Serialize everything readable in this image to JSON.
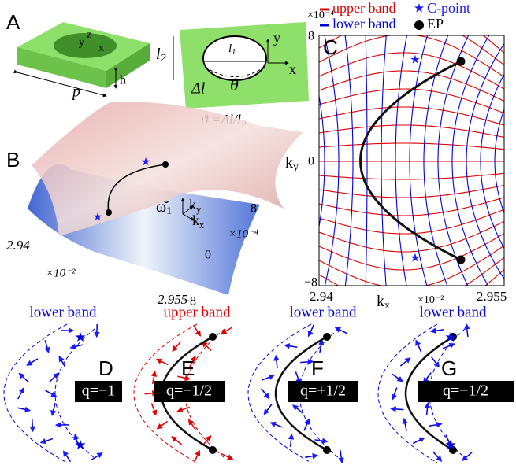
{
  "panel_a": {
    "label": "A",
    "axis_y": "y",
    "axis_z": "z",
    "axis_x": "x",
    "width": "p",
    "height": "h",
    "l2": {
      "base": "l",
      "sub": "2"
    },
    "l1": {
      "base": "l",
      "sub": "1"
    },
    "delta_l": "Δl",
    "theta": "θ",
    "inset_y": "y",
    "inset_x": "x",
    "formula": {
      "main": "ϑ =Δl/l",
      "sub": "2"
    }
  },
  "panel_b": {
    "label": "B",
    "omega": {
      "base": "ω̆",
      "sub": "1"
    },
    "ky": {
      "base": "k",
      "sub": "y"
    },
    "kx": {
      "base": "k",
      "sub": "x"
    },
    "ky_max": "8",
    "ky_mid": "0",
    "ky_min": "−8",
    "ky_scale": "×10⁻⁴",
    "kx_min": "2.94",
    "kx_max": "2.955",
    "kx_scale": "×10⁻²"
  },
  "panel_c": {
    "label": "C",
    "ky_max": "8",
    "ky_mid": "0",
    "ky_min": "−8",
    "ky_scale": "×10⁻⁴",
    "ky": {
      "base": "k",
      "sub": "y"
    },
    "kx_min": "2.94",
    "kx_max": "2.955",
    "kx": {
      "base": "k",
      "sub": "x"
    },
    "kx_scale": "×10⁻²"
  },
  "legend": [
    {
      "name": "upper band",
      "color": "#e00000"
    },
    {
      "name": "lower band",
      "color": "#0000e0"
    },
    {
      "name": "C-point",
      "color": "#1a1aff"
    },
    {
      "name": "EP",
      "color": "#000000"
    }
  ],
  "panels_dg": [
    {
      "label": "D",
      "band": "lower band",
      "charge": "q=−1"
    },
    {
      "label": "E",
      "band": "upper band",
      "charge": "q=−1/2"
    },
    {
      "label": "F",
      "band": "lower band",
      "charge": "q=+1/2"
    },
    {
      "label": "G",
      "band": "lower band",
      "charge": "q=−1/2"
    }
  ]
}
